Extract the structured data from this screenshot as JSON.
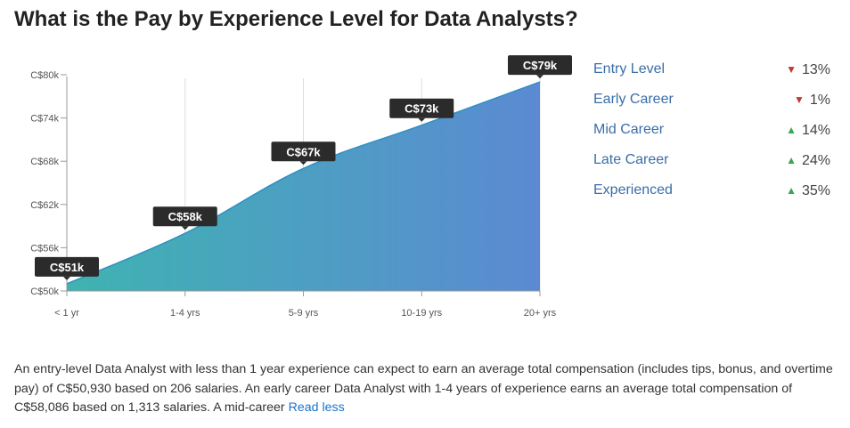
{
  "page": {
    "title": "What is the Pay by Experience Level for Data Analysts?"
  },
  "chart_data": {
    "type": "area",
    "categories": [
      "< 1 yr",
      "1-4 yrs",
      "5-9 yrs",
      "10-19 yrs",
      "20+ yrs"
    ],
    "values": [
      51,
      58,
      67,
      73,
      79
    ],
    "data_labels": [
      "C$51k",
      "C$58k",
      "C$67k",
      "C$73k",
      "C$79k"
    ],
    "y_ticks": [
      50,
      56,
      62,
      68,
      74,
      80
    ],
    "y_tick_labels": [
      "C$50k",
      "C$56k",
      "C$62k",
      "C$68k",
      "C$74k",
      "C$80k"
    ],
    "ylim": [
      50,
      80
    ],
    "grid": "vertical",
    "colors": {
      "gradient_start": "#3fb3b1",
      "gradient_end": "#5b8ad3",
      "line": "#2f8fc4",
      "label_bg": "#2b2b2b"
    }
  },
  "legend": {
    "items": [
      {
        "label": "Entry Level",
        "direction": "down",
        "change": "13%"
      },
      {
        "label": "Early Career",
        "direction": "down",
        "change": "1%"
      },
      {
        "label": "Mid Career",
        "direction": "up",
        "change": "14%"
      },
      {
        "label": "Late Career",
        "direction": "up",
        "change": "24%"
      },
      {
        "label": "Experienced",
        "direction": "up",
        "change": "35%"
      }
    ]
  },
  "description": {
    "text": "An entry-level Data Analyst with less than 1 year experience can expect to earn an average total compensation (includes tips, bonus, and overtime pay) of C$50,930 based on 206 salaries. An early career Data Analyst with 1-4 years of experience earns an average total compensation of C$58,086 based on 1,313 salaries. A mid-career",
    "read_less": "Read less"
  }
}
